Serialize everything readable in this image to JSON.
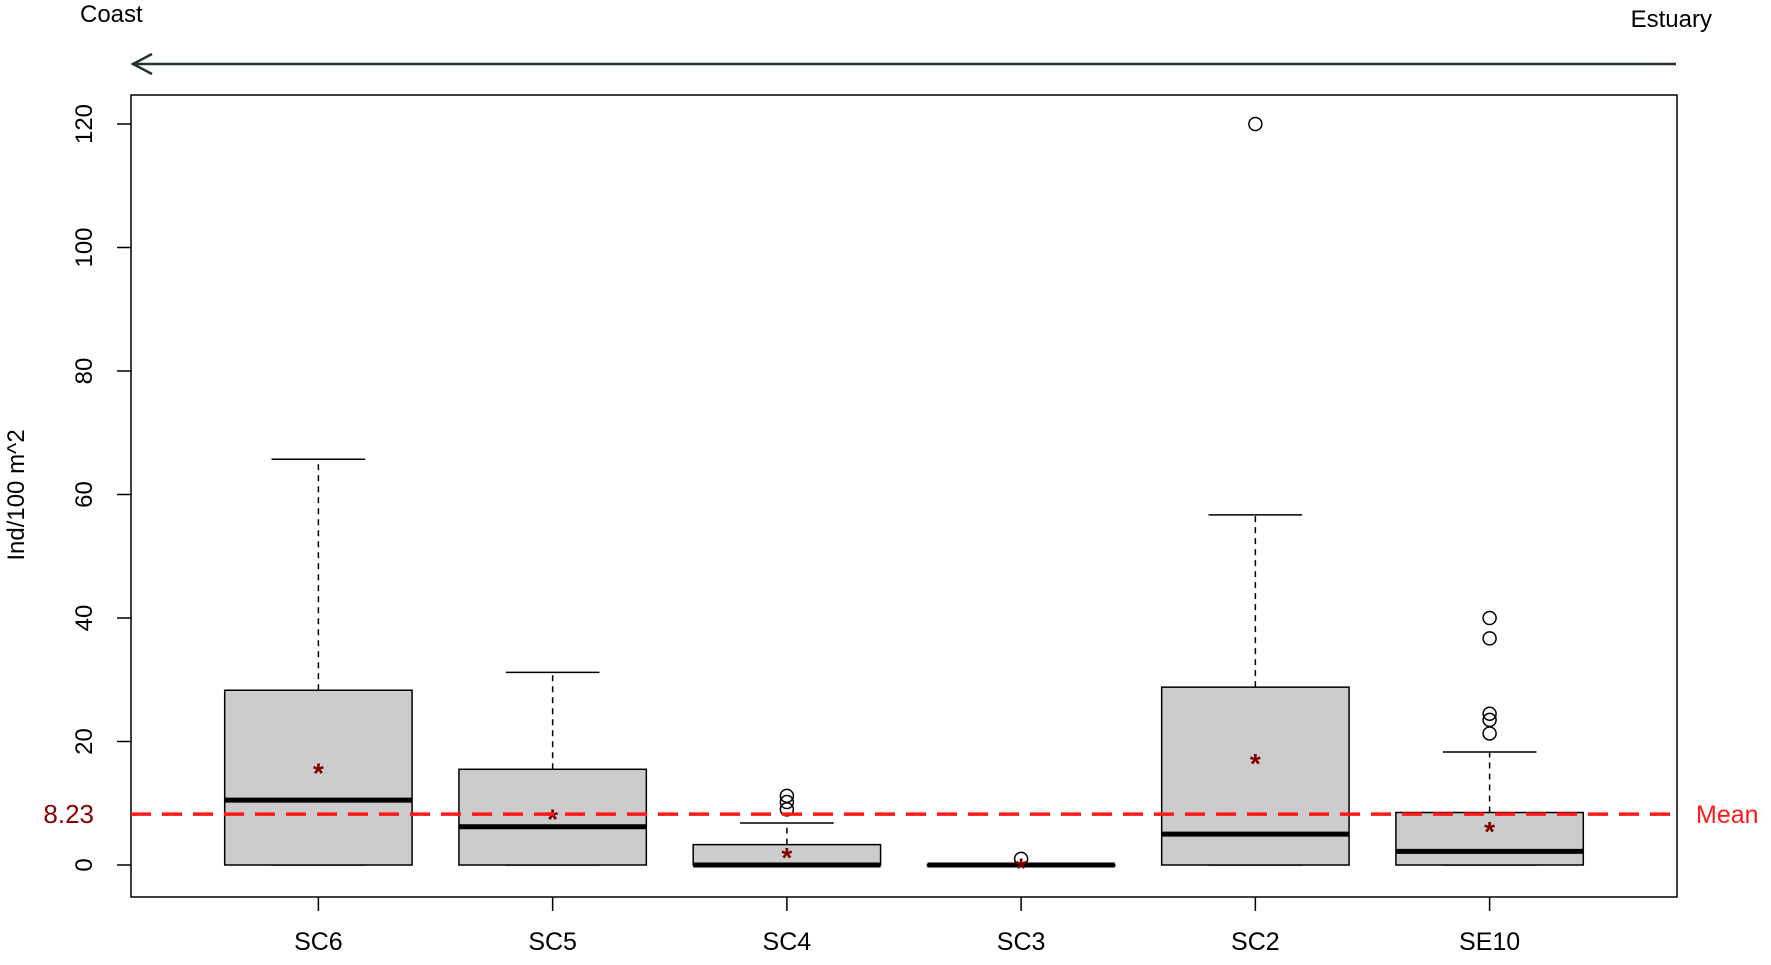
{
  "chart_data": {
    "type": "box",
    "direction": {
      "left_label": "Coast",
      "right_label": "Estuary"
    },
    "ylabel": "Ind/100 m^2",
    "ylim": [
      -5,
      125
    ],
    "yticks": [
      0,
      20,
      40,
      60,
      80,
      100,
      120
    ],
    "categories": [
      "SC6",
      "SC5",
      "SC4",
      "SC3",
      "SC2",
      "SE10"
    ],
    "boxes": [
      {
        "min": 0,
        "q1": 0,
        "median": 10.5,
        "q3": 28.3,
        "max": 65.7,
        "mean": 15.5,
        "outliers": []
      },
      {
        "min": 0,
        "q1": 0,
        "median": 6.2,
        "q3": 15.5,
        "max": 31.2,
        "mean": 8.0,
        "outliers": []
      },
      {
        "min": 0,
        "q1": 0,
        "median": 0,
        "q3": 3.3,
        "max": 6.8,
        "mean": 1.8,
        "outliers": [
          9.0,
          10.2,
          11.2
        ]
      },
      {
        "min": 0,
        "q1": 0,
        "median": 0,
        "q3": 0,
        "max": 0,
        "mean": 0.1,
        "outliers": [
          1.0
        ]
      },
      {
        "min": 0,
        "q1": 0,
        "median": 5.0,
        "q3": 28.8,
        "max": 56.7,
        "mean": 17.0,
        "outliers": [
          120.0
        ]
      },
      {
        "min": 0,
        "q1": 0,
        "median": 2.2,
        "q3": 8.5,
        "max": 18.3,
        "mean": 6.0,
        "outliers": [
          21.3,
          23.5,
          24.5,
          36.7,
          40.0
        ]
      }
    ],
    "mean_line": {
      "value": 8.23,
      "value_label": "8.23",
      "label": "Mean"
    },
    "colors": {
      "box_fill": "#cccccc",
      "mean_line": "#ff1a1a",
      "mean_marker": "#800000",
      "value_label": "#8b0000",
      "arrow": "#223333"
    }
  }
}
